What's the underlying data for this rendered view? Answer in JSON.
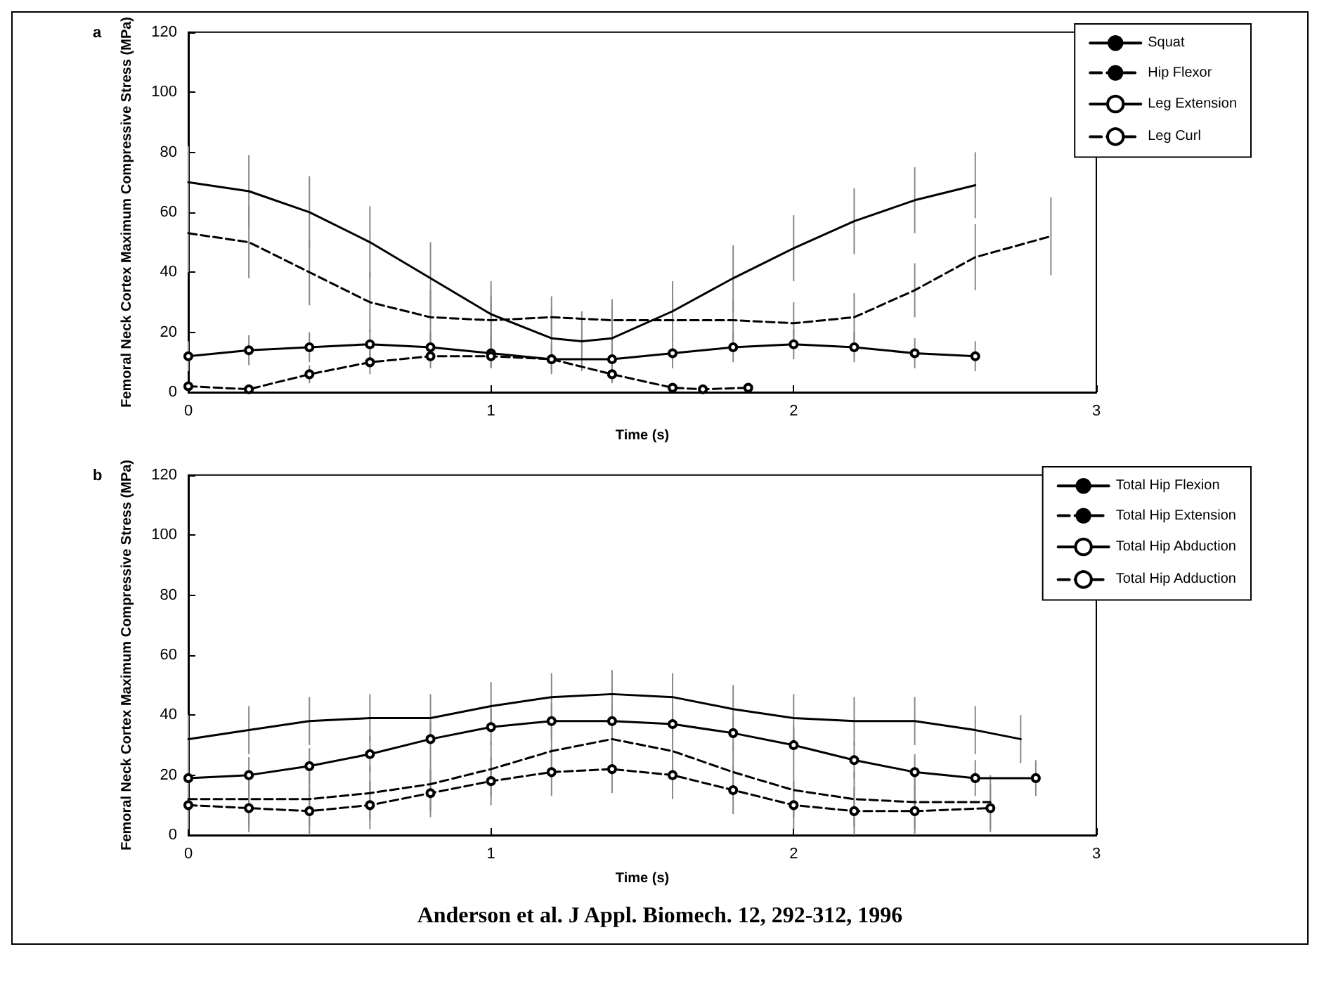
{
  "chart_data": [
    {
      "type": "line",
      "title": "a",
      "xlabel": "Time (s)",
      "ylabel": "Femoral Neck Cortex Maximum Compressive Stress (MPa)",
      "xlim": [
        0,
        3
      ],
      "xticks": [
        0,
        1,
        2,
        3
      ],
      "ylim": [
        0,
        120
      ],
      "yticks": [
        0,
        20,
        40,
        60,
        80,
        100,
        120
      ],
      "grid": false,
      "legend": "top right",
      "series": [
        {
          "name": "Squat",
          "color": "#000000",
          "line_style": "solid",
          "marker": "none",
          "x": [
            0,
            0.2,
            0.4,
            0.6,
            0.8,
            1.0,
            1.2,
            1.3,
            1.4,
            1.6,
            1.8,
            2.0,
            2.2,
            2.4,
            2.6
          ],
          "values": [
            70,
            67,
            60,
            50,
            38,
            26,
            18,
            17,
            18,
            27,
            38,
            48,
            57,
            64,
            69
          ],
          "errors": [
            12,
            12,
            12,
            12,
            12,
            11,
            10,
            10,
            10,
            10,
            11,
            11,
            11,
            11,
            11
          ]
        },
        {
          "name": "Hip Flexor",
          "color": "#000000",
          "line_style": "dashed",
          "marker": "none",
          "x": [
            0,
            0.2,
            0.4,
            0.6,
            0.8,
            1.0,
            1.2,
            1.4,
            1.6,
            1.8,
            2.0,
            2.2,
            2.4,
            2.6,
            2.85
          ],
          "values": [
            53,
            50,
            40,
            30,
            25,
            24,
            25,
            24,
            24,
            24,
            23,
            25,
            34,
            45,
            52
          ],
          "errors": [
            13,
            12,
            11,
            10,
            9,
            8,
            7,
            7,
            7,
            7,
            7,
            8,
            9,
            11,
            13
          ]
        },
        {
          "name": "Leg Extension",
          "color": "#000000",
          "line_style": "solid",
          "marker": "circle",
          "x": [
            0,
            0.2,
            0.4,
            0.6,
            0.8,
            1.0,
            1.2,
            1.4,
            1.6,
            1.8,
            2.0,
            2.2,
            2.4,
            2.6
          ],
          "values": [
            12,
            14,
            15,
            16,
            15,
            13,
            11,
            11,
            13,
            15,
            16,
            15,
            13,
            12
          ],
          "errors": [
            5,
            5,
            5,
            5,
            5,
            5,
            5,
            5,
            5,
            5,
            5,
            5,
            5,
            5
          ]
        },
        {
          "name": "Leg Curl",
          "color": "#000000",
          "line_style": "dashed",
          "marker": "circle",
          "x": [
            0,
            0.2,
            0.4,
            0.6,
            0.8,
            1.0,
            1.2,
            1.4,
            1.6,
            1.7,
            1.85
          ],
          "values": [
            2,
            1,
            6,
            10,
            12,
            12,
            11,
            6,
            1.5,
            1,
            1.5
          ],
          "errors": [
            1,
            0.5,
            3,
            4,
            4,
            4,
            4,
            3,
            1,
            0.5,
            1
          ]
        }
      ]
    },
    {
      "type": "line",
      "title": "b",
      "xlabel": "Time (s)",
      "ylabel": "Femoral Neck Cortex Maximum Compressive Stress (MPa)",
      "xlim": [
        0,
        3
      ],
      "xticks": [
        0,
        1,
        2,
        3
      ],
      "ylim": [
        0,
        120
      ],
      "yticks": [
        0,
        20,
        40,
        60,
        80,
        100,
        120
      ],
      "grid": false,
      "legend": "top right",
      "annotations": [
        "Anderson et al. J Appl. Biomech. 12, 292-312, 1996"
      ],
      "series": [
        {
          "name": "Total Hip Flexion",
          "color": "#000000",
          "line_style": "solid",
          "marker": "none",
          "x": [
            0,
            0.2,
            0.4,
            0.6,
            0.8,
            1.0,
            1.2,
            1.4,
            1.6,
            1.8,
            2.0,
            2.2,
            2.4,
            2.6,
            2.75
          ],
          "values": [
            32,
            35,
            38,
            39,
            39,
            43,
            46,
            47,
            46,
            42,
            39,
            38,
            38,
            35,
            32
          ],
          "errors": [
            8,
            8,
            8,
            8,
            8,
            8,
            8,
            8,
            8,
            8,
            8,
            8,
            8,
            8,
            8
          ]
        },
        {
          "name": "Total Hip Extension",
          "color": "#000000",
          "line_style": "dashed",
          "marker": "none",
          "x": [
            0,
            0.2,
            0.4,
            0.6,
            0.8,
            1.0,
            1.2,
            1.4,
            1.6,
            1.8,
            2.0,
            2.2,
            2.4,
            2.65
          ],
          "values": [
            12,
            12,
            12,
            14,
            17,
            22,
            28,
            32,
            28,
            21,
            15,
            12,
            11,
            11
          ],
          "errors": [
            9,
            9,
            9,
            9,
            9,
            9,
            9,
            9,
            9,
            9,
            9,
            9,
            9,
            9
          ]
        },
        {
          "name": "Total Hip Abduction",
          "color": "#000000",
          "line_style": "solid",
          "marker": "circle",
          "x": [
            0,
            0.2,
            0.4,
            0.6,
            0.8,
            1.0,
            1.2,
            1.4,
            1.6,
            1.8,
            2.0,
            2.2,
            2.4,
            2.6,
            2.8
          ],
          "values": [
            19,
            20,
            23,
            27,
            32,
            36,
            38,
            38,
            37,
            34,
            30,
            25,
            21,
            19,
            19
          ],
          "errors": [
            6,
            6,
            6,
            6,
            6,
            6,
            6,
            6,
            6,
            6,
            6,
            6,
            6,
            6,
            6
          ]
        },
        {
          "name": "Total Hip Adduction",
          "color": "#000000",
          "line_style": "dashed",
          "marker": "circle",
          "x": [
            0,
            0.2,
            0.4,
            0.6,
            0.8,
            1.0,
            1.2,
            1.4,
            1.6,
            1.8,
            2.0,
            2.2,
            2.4,
            2.65
          ],
          "values": [
            10,
            9,
            8,
            10,
            14,
            18,
            21,
            22,
            20,
            15,
            10,
            8,
            8,
            9
          ],
          "errors": [
            8,
            8,
            8,
            8,
            8,
            8,
            8,
            8,
            8,
            8,
            8,
            8,
            8,
            8
          ]
        }
      ]
    }
  ]
}
